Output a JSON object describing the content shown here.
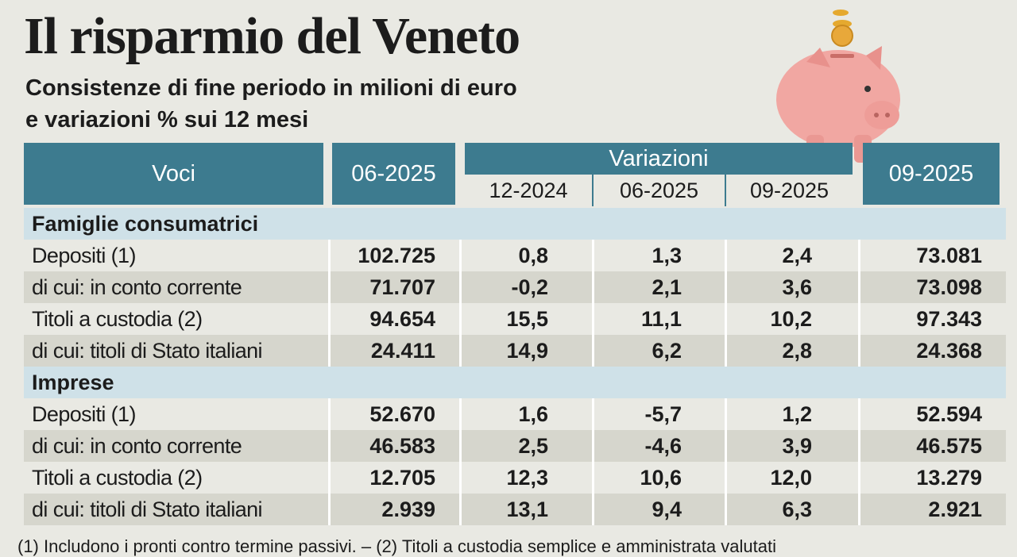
{
  "header": {
    "title": "Il risparmio del Veneto",
    "subtitle_lines": [
      "Consistenze di fine periodo in milioni di euro",
      "e variazioni % sui 12 mesi"
    ]
  },
  "table": {
    "columns": {
      "voci": "Voci",
      "first": "06-2025",
      "group": "Variazioni",
      "sub": [
        "12-2024",
        "06-2025",
        "09-2025"
      ],
      "last": "09-2025"
    },
    "sections": [
      {
        "name": "Famiglie consumatrici",
        "rows": [
          [
            "Depositi (1)",
            "102.725",
            "0,8",
            "1,3",
            "2,4",
            "73.081"
          ],
          [
            "di cui: in conto corrente",
            "71.707",
            "-0,2",
            "2,1",
            "3,6",
            "73.098"
          ],
          [
            "Titoli a custodia (2)",
            "94.654",
            "15,5",
            "11,1",
            "10,2",
            "97.343"
          ],
          [
            "di cui: titoli di Stato italiani",
            "24.411",
            "14,9",
            "6,2",
            "2,8",
            "24.368"
          ]
        ]
      },
      {
        "name": "Imprese",
        "rows": [
          [
            "Depositi (1)",
            "52.670",
            "1,6",
            "-5,7",
            "1,2",
            "52.594"
          ],
          [
            "di cui: in conto corrente",
            "46.583",
            "2,5",
            "-4,6",
            "3,9",
            "46.575"
          ],
          [
            "Titoli a custodia (2)",
            "12.705",
            "12,3",
            "10,6",
            "12,0",
            "13.279"
          ],
          [
            "di cui: titoli di Stato italiani",
            "2.939",
            "13,1",
            "9,4",
            "6,3",
            "2.921"
          ]
        ]
      }
    ]
  },
  "footnote": "(1) Includono i pronti contro termine passivi. – (2) Titoli a custodia semplice e amministrata valutati"
}
